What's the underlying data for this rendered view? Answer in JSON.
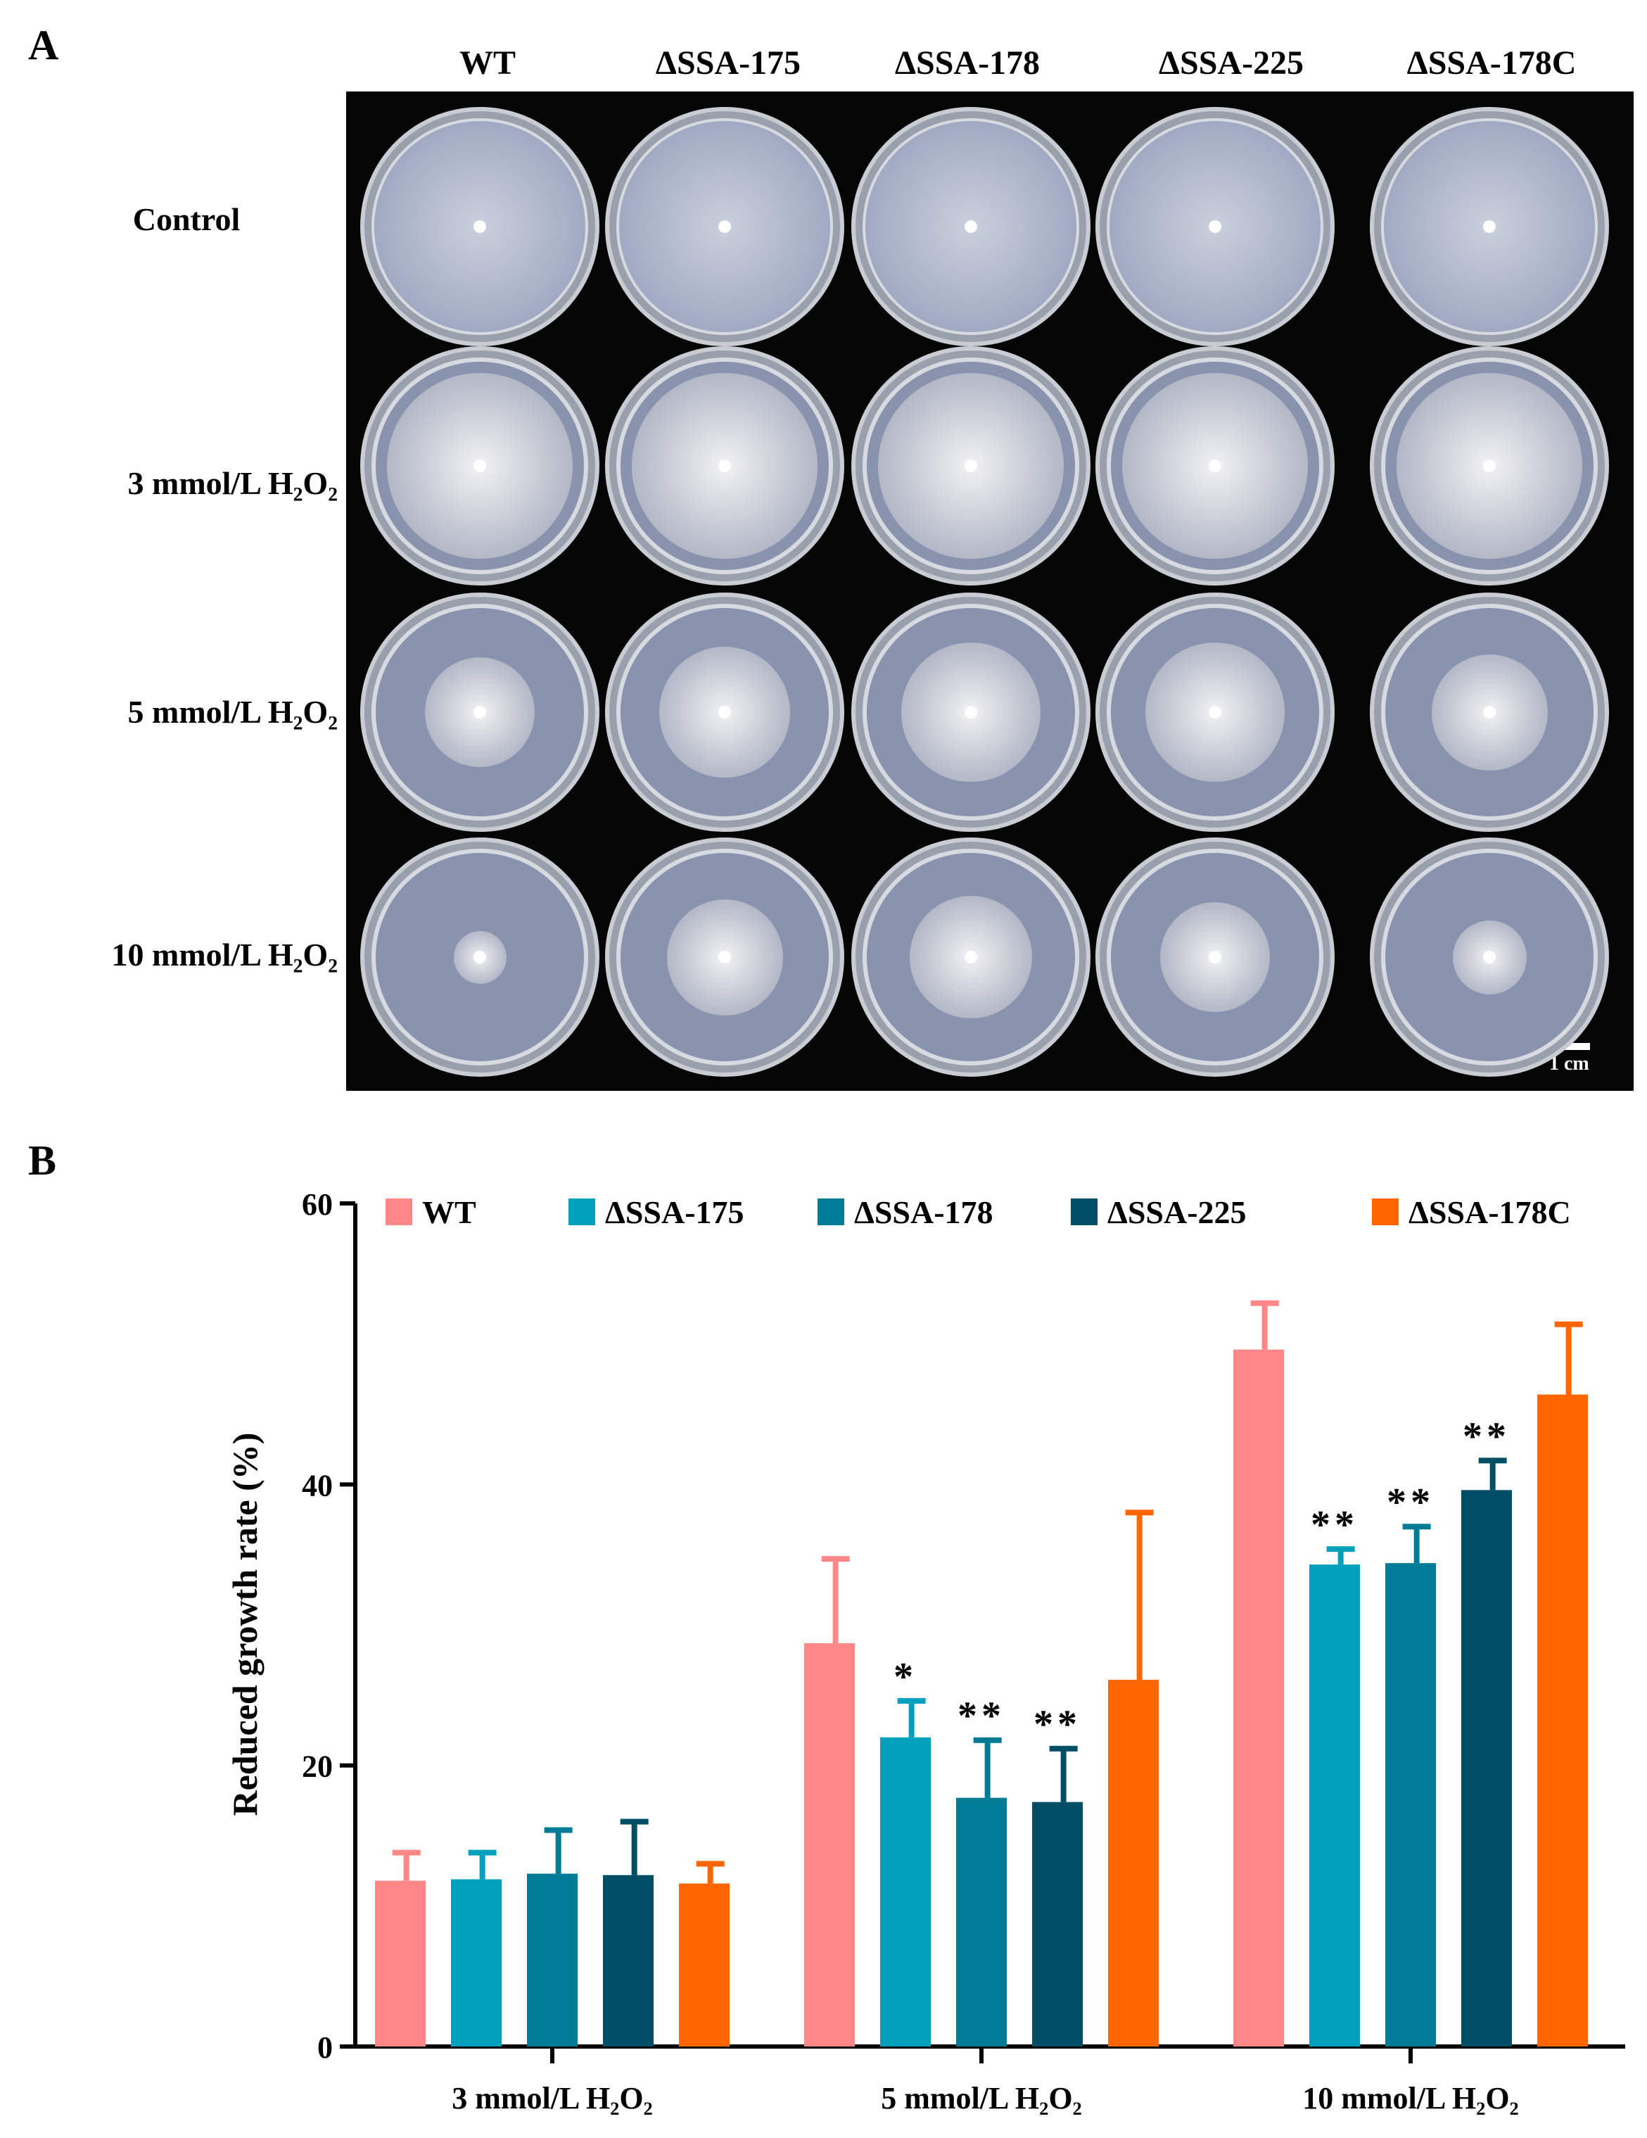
{
  "panel_a": {
    "letter": "A",
    "columns": [
      "ΔSSA-175",
      "ΔSSA-178",
      "ΔSSA-225",
      "ΔSSA-178C"
    ],
    "first_column": "WT",
    "rows": [
      "Control",
      "3 mmol/L H₂O₂",
      "5 mmol/L H₂O₂",
      "10 mmol/L H₂O₂"
    ],
    "scale_label": "1 cm",
    "colony_relative_size": [
      [
        1.0,
        1.0,
        1.0,
        1.0,
        1.0
      ],
      [
        0.88,
        0.88,
        0.88,
        0.88,
        0.88
      ],
      [
        0.52,
        0.62,
        0.66,
        0.66,
        0.55
      ],
      [
        0.25,
        0.55,
        0.58,
        0.52,
        0.35
      ]
    ],
    "colors": {
      "background": "#050505",
      "dish": "#c9ccd3"
    }
  },
  "panel_b": {
    "letter": "B",
    "ylabel": "Reduced growth rate (%)"
  },
  "chart_data": {
    "type": "bar",
    "title": "",
    "xlabel": "",
    "ylabel": "Reduced growth rate (%)",
    "ylim": [
      0,
      60
    ],
    "yticks": [
      0,
      20,
      40,
      60
    ],
    "categories": [
      "3 mmol/L H₂O₂",
      "5 mmol/L H₂O₂",
      "10 mmol/L H₂O₂"
    ],
    "series": [
      {
        "name": "WT",
        "color": "#ff8787",
        "values": [
          11.8,
          28.7,
          49.6
        ],
        "errors": [
          2.0,
          6.0,
          3.3
        ],
        "marks": [
          "",
          "",
          ""
        ]
      },
      {
        "name": "ΔSSA-175",
        "color": "#00a0bc",
        "values": [
          11.9,
          22.0,
          34.3
        ],
        "errors": [
          1.9,
          2.6,
          1.1
        ],
        "marks": [
          "",
          "*",
          "**"
        ]
      },
      {
        "name": "ΔSSA-178",
        "color": "#007b96",
        "values": [
          12.3,
          17.7,
          34.4
        ],
        "errors": [
          3.1,
          4.1,
          2.6
        ],
        "marks": [
          "",
          "**",
          "**"
        ]
      },
      {
        "name": "ΔSSA-225",
        "color": "#004e66",
        "values": [
          12.2,
          17.4,
          39.6
        ],
        "errors": [
          3.8,
          3.8,
          2.1
        ],
        "marks": [
          "",
          "**",
          "**"
        ]
      },
      {
        "name": "ΔSSA-178C",
        "color": "#ff6600",
        "values": [
          11.6,
          26.1,
          46.4
        ],
        "errors": [
          1.4,
          11.9,
          5.0
        ],
        "marks": [
          "",
          "",
          ""
        ]
      }
    ],
    "legend_position": "top"
  }
}
